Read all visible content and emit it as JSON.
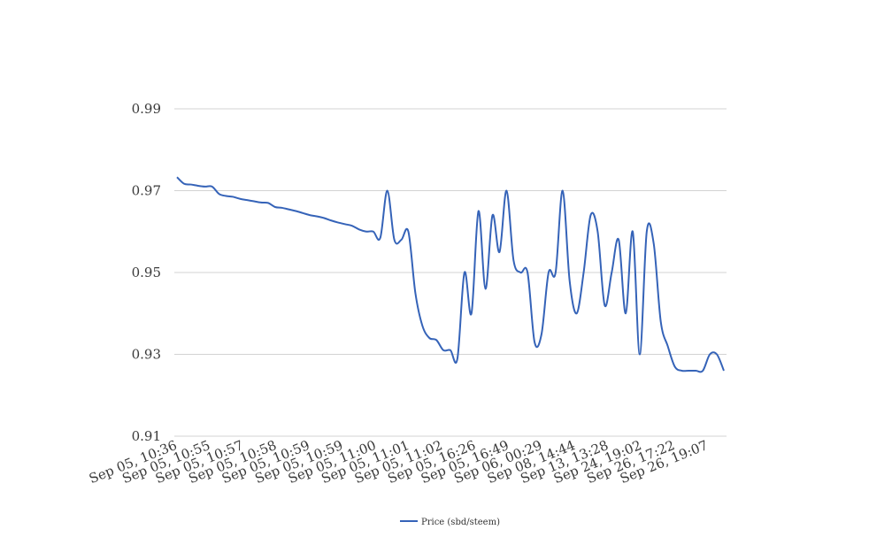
{
  "chart_data": {
    "type": "line",
    "title": "",
    "xlabel": "",
    "ylabel": "",
    "ylim": [
      0.91,
      0.99
    ],
    "y_ticks": [
      "0.91",
      "0.93",
      "0.95",
      "0.97",
      "0.99"
    ],
    "y_tick_values": [
      0.91,
      0.93,
      0.95,
      0.97,
      0.99
    ],
    "x_tick_labels": [
      "Sep 05, 10:36",
      "Sep 05, 10:55",
      "Sep 05, 10:57",
      "Sep 05, 10:58",
      "Sep 05, 10:59",
      "Sep 05, 10:59",
      "Sep 05, 11:00",
      "Sep 05, 11:01",
      "Sep 05, 11:02",
      "Sep 05, 16:26",
      "Sep 05, 16:49",
      "Sep 06, 00:29",
      "Sep 08, 14:44",
      "Sep 13, 13:28",
      "Sep 24, 19:02",
      "Sep 26, 17:22",
      "Sep 26, 19:07"
    ],
    "grid": true,
    "legend_position": "bottom-center",
    "series": [
      {
        "name": "Price (sbd/steem)",
        "color": "#3563b8",
        "values": [
          0.9733,
          0.9717,
          0.9715,
          0.9712,
          0.971,
          0.971,
          0.9692,
          0.9687,
          0.9685,
          0.968,
          0.9677,
          0.9674,
          0.9671,
          0.967,
          0.966,
          0.9658,
          0.9654,
          0.965,
          0.9645,
          0.964,
          0.9637,
          0.9633,
          0.9627,
          0.9622,
          0.9618,
          0.9614,
          0.9605,
          0.96,
          0.96,
          0.9585,
          0.97,
          0.958,
          0.958,
          0.96,
          0.945,
          0.937,
          0.934,
          0.9335,
          0.931,
          0.931,
          0.929,
          0.95,
          0.94,
          0.965,
          0.946,
          0.964,
          0.955,
          0.97,
          0.953,
          0.95,
          0.95,
          0.933,
          0.935,
          0.95,
          0.95,
          0.97,
          0.948,
          0.94,
          0.95,
          0.964,
          0.96,
          0.942,
          0.95,
          0.958,
          0.94,
          0.96,
          0.93,
          0.96,
          0.957,
          0.938,
          0.932,
          0.927,
          0.926,
          0.926,
          0.926,
          0.926,
          0.93,
          0.93,
          0.926
        ]
      }
    ]
  }
}
